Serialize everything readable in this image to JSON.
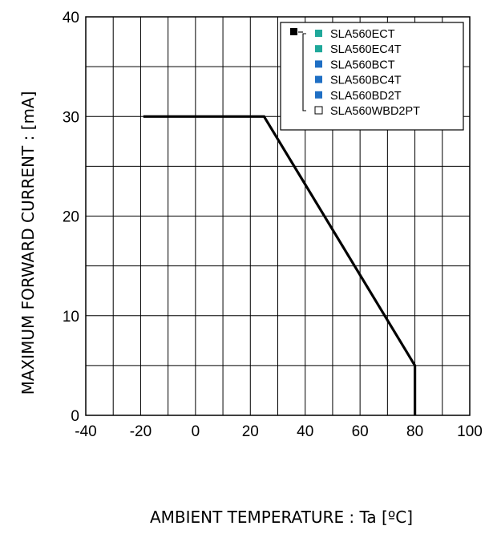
{
  "chart_data": {
    "type": "line",
    "title": "",
    "xlabel": "AMBIENT TEMPERATURE : Ta [ºC]",
    "ylabel": "MAXIMUM FORWARD CURRENT : [mA]",
    "xlim": [
      -40,
      100
    ],
    "ylim": [
      0,
      40
    ],
    "xticks": [
      "-40",
      "-20",
      "0",
      "20",
      "40",
      "60",
      "80",
      "100"
    ],
    "yticks": [
      "0",
      "10",
      "20",
      "30",
      "40"
    ],
    "grid": true,
    "series": [
      {
        "x": [
          -19,
          25,
          80,
          80
        ],
        "y": [
          30,
          30,
          5,
          0
        ],
        "color": "#000000"
      }
    ],
    "legend": {
      "placement": "top-right",
      "group_marker_color": "#000000",
      "entries": [
        {
          "label": "SLA560ECT",
          "color": "#1fa89a"
        },
        {
          "label": "SLA560EC4T",
          "color": "#1fa89a"
        },
        {
          "label": "SLA560BCT",
          "color": "#1f6fc4"
        },
        {
          "label": "SLA560BC4T",
          "color": "#1f6fc4"
        },
        {
          "label": "SLA560BD2T",
          "color": "#1f6fc4"
        },
        {
          "label": "SLA560WBD2PT",
          "color": "#ffffff"
        }
      ]
    }
  }
}
